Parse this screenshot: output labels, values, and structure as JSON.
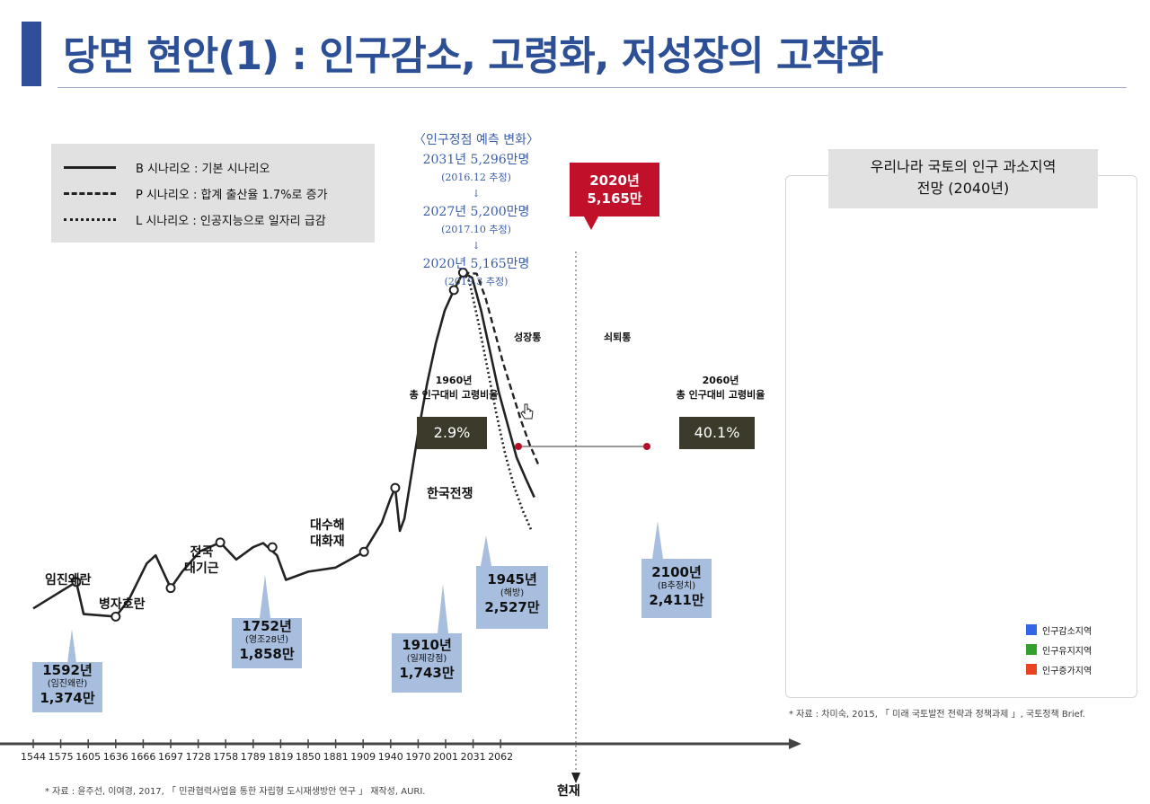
{
  "page": {
    "title": "당면 현안(1) : 인구감소, 고령화, 저성장의 고착화"
  },
  "legend": {
    "items": [
      {
        "label": "B 시나리오 : 기본 시나리오",
        "style": "solid"
      },
      {
        "label": "P 시나리오 : 합계 출산율 1.7%로 증가",
        "style": "dashed"
      },
      {
        "label": "L 시나리오 : 인공지능으로 일자리 급감",
        "style": "dotted"
      }
    ]
  },
  "forecast": {
    "heading": "〈인구정점 예측 변화〉",
    "entries": [
      {
        "value": "2031년 5,296만명",
        "note": "(2016.12 추정)"
      },
      {
        "value": "2027년 5,200만명",
        "note": "(2017.10 추정)"
      },
      {
        "value": "2020년 5,165만명",
        "note": "(2019.3 추정)"
      }
    ],
    "arrow": "↓"
  },
  "peak": {
    "year": "2020년",
    "value": "5,165만"
  },
  "phases": {
    "growth": "성장통",
    "decline": "쇠퇴통"
  },
  "aging": {
    "left": {
      "line1": "1960년",
      "line2": "총 인구대비 고령비율",
      "value": "2.9%"
    },
    "right": {
      "line1": "2060년",
      "line2": "총 인구대비 고령비율",
      "value": "40.1%"
    }
  },
  "events": {
    "imjin": "임진왜란",
    "byeongja": "병자호란",
    "famine": [
      "전국",
      "대기근"
    ],
    "flood": [
      "대수해",
      "대화재"
    ],
    "korean_war": "한국전쟁",
    "now": "현재"
  },
  "callouts": [
    {
      "year": "1592년",
      "sub": "(임진왜란)",
      "value": "1,374만"
    },
    {
      "year": "1752년",
      "sub": "(영조28년)",
      "value": "1,858만"
    },
    {
      "year": "1910년",
      "sub": "(일제강점)",
      "value": "1,743만"
    },
    {
      "year": "1945년",
      "sub": "(해방)",
      "value": "2,527만"
    },
    {
      "year": "2100년",
      "sub": "(B추정치)",
      "value": "2,411만"
    }
  ],
  "chart_data": {
    "type": "line",
    "x_ticks": [
      "1544",
      "1575",
      "1605",
      "1636",
      "1666",
      "1697",
      "1728",
      "1758",
      "1789",
      "1819",
      "1850",
      "1881",
      "1909",
      "1940",
      "1970",
      "2001",
      "2031",
      "2062"
    ],
    "series": [
      {
        "style": "solid",
        "points": [
          [
            1544,
            1050
          ],
          [
            1592,
            1374
          ],
          [
            1600,
            980
          ],
          [
            1636,
            950
          ],
          [
            1650,
            1150
          ],
          [
            1670,
            1600
          ],
          [
            1680,
            1700
          ],
          [
            1697,
            1300
          ],
          [
            1710,
            1500
          ],
          [
            1730,
            1750
          ],
          [
            1752,
            1858
          ],
          [
            1770,
            1650
          ],
          [
            1789,
            1800
          ],
          [
            1800,
            1850
          ],
          [
            1815,
            1700
          ],
          [
            1825,
            1400
          ],
          [
            1850,
            1500
          ],
          [
            1881,
            1550
          ],
          [
            1910,
            1743
          ],
          [
            1930,
            2100
          ],
          [
            1940,
            2400
          ],
          [
            1945,
            2527
          ],
          [
            1950,
            2000
          ],
          [
            1955,
            2150
          ],
          [
            1960,
            2500
          ],
          [
            1970,
            3200
          ],
          [
            1980,
            3800
          ],
          [
            1990,
            4300
          ],
          [
            2000,
            4700
          ],
          [
            2010,
            4950
          ],
          [
            2020,
            5165
          ],
          [
            2030,
            5100
          ],
          [
            2040,
            4700
          ],
          [
            2050,
            4200
          ],
          [
            2060,
            3700
          ],
          [
            2070,
            3300
          ],
          [
            2080,
            2900
          ],
          [
            2090,
            2650
          ],
          [
            2100,
            2411
          ]
        ]
      },
      {
        "style": "dashed",
        "points": [
          [
            2020,
            5165
          ],
          [
            2030,
            5150
          ],
          [
            2040,
            4850
          ],
          [
            2050,
            4450
          ],
          [
            2060,
            4050
          ],
          [
            2070,
            3700
          ],
          [
            2080,
            3350
          ],
          [
            2090,
            3050
          ],
          [
            2100,
            2800
          ]
        ]
      },
      {
        "style": "dotted",
        "points": [
          [
            2020,
            5165
          ],
          [
            2030,
            5050
          ],
          [
            2040,
            4550
          ],
          [
            2050,
            4000
          ],
          [
            2060,
            3450
          ],
          [
            2070,
            2950
          ],
          [
            2080,
            2550
          ],
          [
            2090,
            2250
          ],
          [
            2100,
            2000
          ]
        ]
      }
    ],
    "xlim": [
      1544,
      2100
    ],
    "ylim": [
      800,
      5400
    ]
  },
  "map": {
    "title_line1": "우리나라 국토의 인구 과소지역",
    "title_line2": "전망 (2040년)",
    "legend": [
      {
        "label": "인구감소지역",
        "color": "#3366e6"
      },
      {
        "label": "인구유지지역",
        "color": "#33a02c"
      },
      {
        "label": "인구증가지역",
        "color": "#e8431f"
      }
    ],
    "source": "* 자료 : 차미숙, 2015, 「 미래 국토발전 전략과 정책과제 」, 국토정책 Brief."
  },
  "source": "* 자료 : 윤주선, 이여경, 2017, 「 민관협력사업을 통한 자립형 도시재생방안 연구 」 재작성, AURI."
}
